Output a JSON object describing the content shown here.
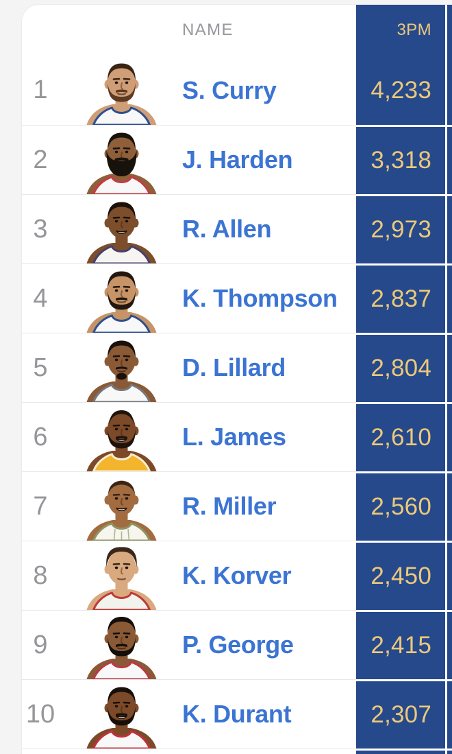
{
  "page": {
    "background": "#f4f4f5"
  },
  "table": {
    "headers": {
      "name": "NAME",
      "stat": "3PM"
    },
    "colors": {
      "stat_column_bg": "#26498b",
      "stat_text": "#ecc979",
      "name_text": "#3b74d3",
      "rank_text": "#96969a",
      "header_text": "#97979c",
      "divider": "#e8e8ea"
    },
    "players": [
      {
        "rank": "1",
        "name": "S. Curry",
        "value": "4,233",
        "avatar": {
          "skin": "#cf9e77",
          "hair": "#3a2415",
          "beard_color": "#5d3a22",
          "jersey": "#f8f8f8",
          "trim": "#2d4f8f",
          "hair_style": "short",
          "beard": "full",
          "mouth": "neutral"
        }
      },
      {
        "rank": "2",
        "name": "J. Harden",
        "value": "3,318",
        "avatar": {
          "skin": "#8f5f3a",
          "hair": "#18120d",
          "beard_color": "#18120d",
          "jersey": "#f8f8f8",
          "trim": "#c43b44",
          "hair_style": "short",
          "beard": "big",
          "mouth": "none"
        }
      },
      {
        "rank": "3",
        "name": "R. Allen",
        "value": "2,973",
        "avatar": {
          "skin": "#7d4e2c",
          "hair": "#1b110b",
          "beard_color": "#1b110b",
          "jersey": "#f6f5f2",
          "trim": "#45406b",
          "hair_style": "short",
          "beard": "none",
          "mouth": "smile"
        }
      },
      {
        "rank": "4",
        "name": "K. Thompson",
        "value": "2,837",
        "avatar": {
          "skin": "#c69466",
          "hair": "#241710",
          "beard_color": "#241710",
          "jersey": "#f8f8f8",
          "trim": "#2d4f8f",
          "hair_style": "short",
          "beard": "full",
          "mouth": "neutral"
        }
      },
      {
        "rank": "5",
        "name": "D. Lillard",
        "value": "2,804",
        "avatar": {
          "skin": "#8a5a36",
          "hair": "#1b110b",
          "beard_color": "#1b110b",
          "jersey": "#f8f8f8",
          "trim": "#77777d",
          "hair_style": "short",
          "beard": "goatee",
          "mouth": "neutral"
        }
      },
      {
        "rank": "6",
        "name": "L. James",
        "value": "2,610",
        "avatar": {
          "skin": "#7c4a29",
          "hair": "#1f140d",
          "beard_color": "#1f140d",
          "jersey": "#f3b52e",
          "trim": "#f8eecf",
          "hair_style": "receding",
          "beard": "full",
          "mouth": "smile"
        }
      },
      {
        "rank": "7",
        "name": "R. Miller",
        "value": "2,560",
        "avatar": {
          "skin": "#a26b40",
          "hair": "#3a2516",
          "beard_color": "#3a2516",
          "jersey": "#f6f5ee",
          "trim": "#8f9465",
          "hair_style": "buzz",
          "beard": "none",
          "mouth": "smile",
          "stripes": true
        }
      },
      {
        "rank": "8",
        "name": "K. Korver",
        "value": "2,450",
        "avatar": {
          "skin": "#d9a97f",
          "hair": "#3b261a",
          "beard_color": "#3b261a",
          "jersey": "#f3f3ee",
          "trim": "#bf3a35",
          "hair_style": "messy",
          "beard": "none",
          "mouth": "neutral"
        }
      },
      {
        "rank": "9",
        "name": "P. George",
        "value": "2,415",
        "avatar": {
          "skin": "#8a5a36",
          "hair": "#140f0b",
          "beard_color": "#140f0b",
          "jersey": "#f8f8f8",
          "trim": "#bd3744",
          "hair_style": "quiff",
          "beard": "full",
          "mouth": "neutral"
        }
      },
      {
        "rank": "10",
        "name": "K. Durant",
        "value": "2,307",
        "avatar": {
          "skin": "#7c4a29",
          "hair": "#190f09",
          "beard_color": "#190f09",
          "jersey": "#f8f8f8",
          "trim": "#c2303c",
          "hair_style": "short",
          "beard": "full",
          "mouth": "smile"
        }
      }
    ]
  }
}
